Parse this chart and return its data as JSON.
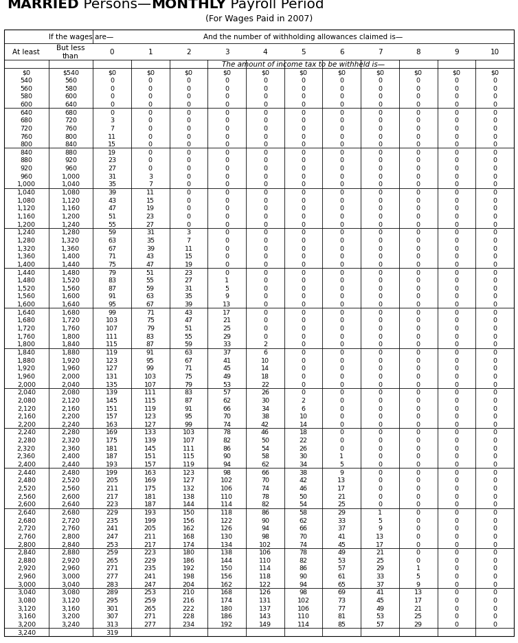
{
  "title_bold": "MARRIED",
  "title_rest1": " Persons—",
  "title_bold2": "MONTHLY",
  "title_rest2": " Payroll Period",
  "subtitle": "(For Wages Paid in 2007)",
  "header1_left": "If the wages are—",
  "header1_right": "And the number of withholding allowances claimed is—",
  "header2_col0": "At least",
  "header2_col1": "But less\nthan",
  "header2_nums": [
    "0",
    "1",
    "2",
    "3",
    "4",
    "5",
    "6",
    "7",
    "8",
    "9",
    "10"
  ],
  "header3": "The amount of income tax to be withheld is—",
  "rows": [
    [
      "$0",
      "$540",
      "$0",
      "$0",
      "$0",
      "$0",
      "$0",
      "$0",
      "$0",
      "$0",
      "$0",
      "$0",
      "$0"
    ],
    [
      "540",
      "560",
      "0",
      "0",
      "0",
      "0",
      "0",
      "0",
      "0",
      "0",
      "0",
      "0",
      "0"
    ],
    [
      "560",
      "580",
      "0",
      "0",
      "0",
      "0",
      "0",
      "0",
      "0",
      "0",
      "0",
      "0",
      "0"
    ],
    [
      "580",
      "600",
      "0",
      "0",
      "0",
      "0",
      "0",
      "0",
      "0",
      "0",
      "0",
      "0",
      "0"
    ],
    [
      "600",
      "640",
      "0",
      "0",
      "0",
      "0",
      "0",
      "0",
      "0",
      "0",
      "0",
      "0",
      "0"
    ],
    [
      "640",
      "680",
      "0",
      "0",
      "0",
      "0",
      "0",
      "0",
      "0",
      "0",
      "0",
      "0",
      "0"
    ],
    [
      "680",
      "720",
      "3",
      "0",
      "0",
      "0",
      "0",
      "0",
      "0",
      "0",
      "0",
      "0",
      "0"
    ],
    [
      "720",
      "760",
      "7",
      "0",
      "0",
      "0",
      "0",
      "0",
      "0",
      "0",
      "0",
      "0",
      "0"
    ],
    [
      "760",
      "800",
      "11",
      "0",
      "0",
      "0",
      "0",
      "0",
      "0",
      "0",
      "0",
      "0",
      "0"
    ],
    [
      "800",
      "840",
      "15",
      "0",
      "0",
      "0",
      "0",
      "0",
      "0",
      "0",
      "0",
      "0",
      "0"
    ],
    [
      "840",
      "880",
      "19",
      "0",
      "0",
      "0",
      "0",
      "0",
      "0",
      "0",
      "0",
      "0",
      "0"
    ],
    [
      "880",
      "920",
      "23",
      "0",
      "0",
      "0",
      "0",
      "0",
      "0",
      "0",
      "0",
      "0",
      "0"
    ],
    [
      "920",
      "960",
      "27",
      "0",
      "0",
      "0",
      "0",
      "0",
      "0",
      "0",
      "0",
      "0",
      "0"
    ],
    [
      "960",
      "1,000",
      "31",
      "3",
      "0",
      "0",
      "0",
      "0",
      "0",
      "0",
      "0",
      "0",
      "0"
    ],
    [
      "1,000",
      "1,040",
      "35",
      "7",
      "0",
      "0",
      "0",
      "0",
      "0",
      "0",
      "0",
      "0",
      "0"
    ],
    [
      "1,040",
      "1,080",
      "39",
      "11",
      "0",
      "0",
      "0",
      "0",
      "0",
      "0",
      "0",
      "0",
      "0"
    ],
    [
      "1,080",
      "1,120",
      "43",
      "15",
      "0",
      "0",
      "0",
      "0",
      "0",
      "0",
      "0",
      "0",
      "0"
    ],
    [
      "1,120",
      "1,160",
      "47",
      "19",
      "0",
      "0",
      "0",
      "0",
      "0",
      "0",
      "0",
      "0",
      "0"
    ],
    [
      "1,160",
      "1,200",
      "51",
      "23",
      "0",
      "0",
      "0",
      "0",
      "0",
      "0",
      "0",
      "0",
      "0"
    ],
    [
      "1,200",
      "1,240",
      "55",
      "27",
      "0",
      "0",
      "0",
      "0",
      "0",
      "0",
      "0",
      "0",
      "0"
    ],
    [
      "1,240",
      "1,280",
      "59",
      "31",
      "3",
      "0",
      "0",
      "0",
      "0",
      "0",
      "0",
      "0",
      "0"
    ],
    [
      "1,280",
      "1,320",
      "63",
      "35",
      "7",
      "0",
      "0",
      "0",
      "0",
      "0",
      "0",
      "0",
      "0"
    ],
    [
      "1,320",
      "1,360",
      "67",
      "39",
      "11",
      "0",
      "0",
      "0",
      "0",
      "0",
      "0",
      "0",
      "0"
    ],
    [
      "1,360",
      "1,400",
      "71",
      "43",
      "15",
      "0",
      "0",
      "0",
      "0",
      "0",
      "0",
      "0",
      "0"
    ],
    [
      "1,400",
      "1,440",
      "75",
      "47",
      "19",
      "0",
      "0",
      "0",
      "0",
      "0",
      "0",
      "0",
      "0"
    ],
    [
      "1,440",
      "1,480",
      "79",
      "51",
      "23",
      "0",
      "0",
      "0",
      "0",
      "0",
      "0",
      "0",
      "0"
    ],
    [
      "1,480",
      "1,520",
      "83",
      "55",
      "27",
      "1",
      "0",
      "0",
      "0",
      "0",
      "0",
      "0",
      "0"
    ],
    [
      "1,520",
      "1,560",
      "87",
      "59",
      "31",
      "5",
      "0",
      "0",
      "0",
      "0",
      "0",
      "0",
      "0"
    ],
    [
      "1,560",
      "1,600",
      "91",
      "63",
      "35",
      "9",
      "0",
      "0",
      "0",
      "0",
      "0",
      "0",
      "0"
    ],
    [
      "1,600",
      "1,640",
      "95",
      "67",
      "39",
      "13",
      "0",
      "0",
      "0",
      "0",
      "0",
      "0",
      "0"
    ],
    [
      "1,640",
      "1,680",
      "99",
      "71",
      "43",
      "17",
      "0",
      "0",
      "0",
      "0",
      "0",
      "0",
      "0"
    ],
    [
      "1,680",
      "1,720",
      "103",
      "75",
      "47",
      "21",
      "0",
      "0",
      "0",
      "0",
      "0",
      "0",
      "0"
    ],
    [
      "1,720",
      "1,760",
      "107",
      "79",
      "51",
      "25",
      "0",
      "0",
      "0",
      "0",
      "0",
      "0",
      "0"
    ],
    [
      "1,760",
      "1,800",
      "111",
      "83",
      "55",
      "29",
      "0",
      "0",
      "0",
      "0",
      "0",
      "0",
      "0"
    ],
    [
      "1,800",
      "1,840",
      "115",
      "87",
      "59",
      "33",
      "2",
      "0",
      "0",
      "0",
      "0",
      "0",
      "0"
    ],
    [
      "1,840",
      "1,880",
      "119",
      "91",
      "63",
      "37",
      "6",
      "0",
      "0",
      "0",
      "0",
      "0",
      "0"
    ],
    [
      "1,880",
      "1,920",
      "123",
      "95",
      "67",
      "41",
      "10",
      "0",
      "0",
      "0",
      "0",
      "0",
      "0"
    ],
    [
      "1,920",
      "1,960",
      "127",
      "99",
      "71",
      "45",
      "14",
      "0",
      "0",
      "0",
      "0",
      "0",
      "0"
    ],
    [
      "1,960",
      "2,000",
      "131",
      "103",
      "75",
      "49",
      "18",
      "0",
      "0",
      "0",
      "0",
      "0",
      "0"
    ],
    [
      "2,000",
      "2,040",
      "135",
      "107",
      "79",
      "53",
      "22",
      "0",
      "0",
      "0",
      "0",
      "0",
      "0"
    ],
    [
      "2,040",
      "2,080",
      "139",
      "111",
      "83",
      "57",
      "26",
      "0",
      "0",
      "0",
      "0",
      "0",
      "0"
    ],
    [
      "2,080",
      "2,120",
      "145",
      "115",
      "87",
      "62",
      "30",
      "2",
      "0",
      "0",
      "0",
      "0",
      "0"
    ],
    [
      "2,120",
      "2,160",
      "151",
      "119",
      "91",
      "66",
      "34",
      "6",
      "0",
      "0",
      "0",
      "0",
      "0"
    ],
    [
      "2,160",
      "2,200",
      "157",
      "123",
      "95",
      "70",
      "38",
      "10",
      "0",
      "0",
      "0",
      "0",
      "0"
    ],
    [
      "2,200",
      "2,240",
      "163",
      "127",
      "99",
      "74",
      "42",
      "14",
      "0",
      "0",
      "0",
      "0",
      "0"
    ],
    [
      "2,240",
      "2,280",
      "169",
      "133",
      "103",
      "78",
      "46",
      "18",
      "0",
      "0",
      "0",
      "0",
      "0"
    ],
    [
      "2,280",
      "2,320",
      "175",
      "139",
      "107",
      "82",
      "50",
      "22",
      "0",
      "0",
      "0",
      "0",
      "0"
    ],
    [
      "2,320",
      "2,360",
      "181",
      "145",
      "111",
      "86",
      "54",
      "26",
      "0",
      "0",
      "0",
      "0",
      "0"
    ],
    [
      "2,360",
      "2,400",
      "187",
      "151",
      "115",
      "90",
      "58",
      "30",
      "1",
      "0",
      "0",
      "0",
      "0"
    ],
    [
      "2,400",
      "2,440",
      "193",
      "157",
      "119",
      "94",
      "62",
      "34",
      "5",
      "0",
      "0",
      "0",
      "0"
    ],
    [
      "2,440",
      "2,480",
      "199",
      "163",
      "123",
      "98",
      "66",
      "38",
      "9",
      "0",
      "0",
      "0",
      "0"
    ],
    [
      "2,480",
      "2,520",
      "205",
      "169",
      "127",
      "102",
      "70",
      "42",
      "13",
      "0",
      "0",
      "0",
      "0"
    ],
    [
      "2,520",
      "2,560",
      "211",
      "175",
      "132",
      "106",
      "74",
      "46",
      "17",
      "0",
      "0",
      "0",
      "0"
    ],
    [
      "2,560",
      "2,600",
      "217",
      "181",
      "138",
      "110",
      "78",
      "50",
      "21",
      "0",
      "0",
      "0",
      "0"
    ],
    [
      "2,600",
      "2,640",
      "223",
      "187",
      "144",
      "114",
      "82",
      "54",
      "25",
      "0",
      "0",
      "0",
      "0"
    ],
    [
      "2,640",
      "2,680",
      "229",
      "193",
      "150",
      "118",
      "86",
      "58",
      "29",
      "1",
      "0",
      "0",
      "0"
    ],
    [
      "2,680",
      "2,720",
      "235",
      "199",
      "156",
      "122",
      "90",
      "62",
      "33",
      "5",
      "0",
      "0",
      "0"
    ],
    [
      "2,720",
      "2,760",
      "241",
      "205",
      "162",
      "126",
      "94",
      "66",
      "37",
      "9",
      "0",
      "0",
      "0"
    ],
    [
      "2,760",
      "2,800",
      "247",
      "211",
      "168",
      "130",
      "98",
      "70",
      "41",
      "13",
      "0",
      "0",
      "0"
    ],
    [
      "2,800",
      "2,840",
      "253",
      "217",
      "174",
      "134",
      "102",
      "74",
      "45",
      "17",
      "0",
      "0",
      "0"
    ],
    [
      "2,840",
      "2,880",
      "259",
      "223",
      "180",
      "138",
      "106",
      "78",
      "49",
      "21",
      "0",
      "0",
      "0"
    ],
    [
      "2,880",
      "2,920",
      "265",
      "229",
      "186",
      "144",
      "110",
      "82",
      "53",
      "25",
      "0",
      "0",
      "0"
    ],
    [
      "2,920",
      "2,960",
      "271",
      "235",
      "192",
      "150",
      "114",
      "86",
      "57",
      "29",
      "1",
      "0",
      "0"
    ],
    [
      "2,960",
      "3,000",
      "277",
      "241",
      "198",
      "156",
      "118",
      "90",
      "61",
      "33",
      "5",
      "0",
      "0"
    ],
    [
      "3,000",
      "3,040",
      "283",
      "247",
      "204",
      "162",
      "122",
      "94",
      "65",
      "37",
      "9",
      "0",
      "0"
    ],
    [
      "3,040",
      "3,080",
      "289",
      "253",
      "210",
      "168",
      "126",
      "98",
      "69",
      "41",
      "13",
      "0",
      "0"
    ],
    [
      "3,080",
      "3,120",
      "295",
      "259",
      "216",
      "174",
      "131",
      "102",
      "73",
      "45",
      "17",
      "0",
      "0"
    ],
    [
      "3,120",
      "3,160",
      "301",
      "265",
      "222",
      "180",
      "137",
      "106",
      "77",
      "49",
      "21",
      "0",
      "0"
    ],
    [
      "3,160",
      "3,200",
      "307",
      "271",
      "228",
      "186",
      "143",
      "110",
      "81",
      "53",
      "25",
      "0",
      "0"
    ],
    [
      "3,200",
      "3,240",
      "313",
      "277",
      "234",
      "192",
      "149",
      "114",
      "85",
      "57",
      "29",
      "0",
      "0"
    ],
    [
      "3,240",
      "",
      "319",
      "",
      "",
      "",
      "",
      "",
      "",
      "",
      "",
      "",
      ""
    ]
  ],
  "group_breaks": [
    0,
    5,
    10,
    15,
    20,
    25,
    30,
    35,
    40,
    45,
    50,
    55,
    60,
    65,
    70
  ],
  "bg_color": "#ffffff",
  "border_color": "#000000",
  "data_font_size": 6.8,
  "header_font_size": 7.5,
  "title_font_size": 14.5
}
